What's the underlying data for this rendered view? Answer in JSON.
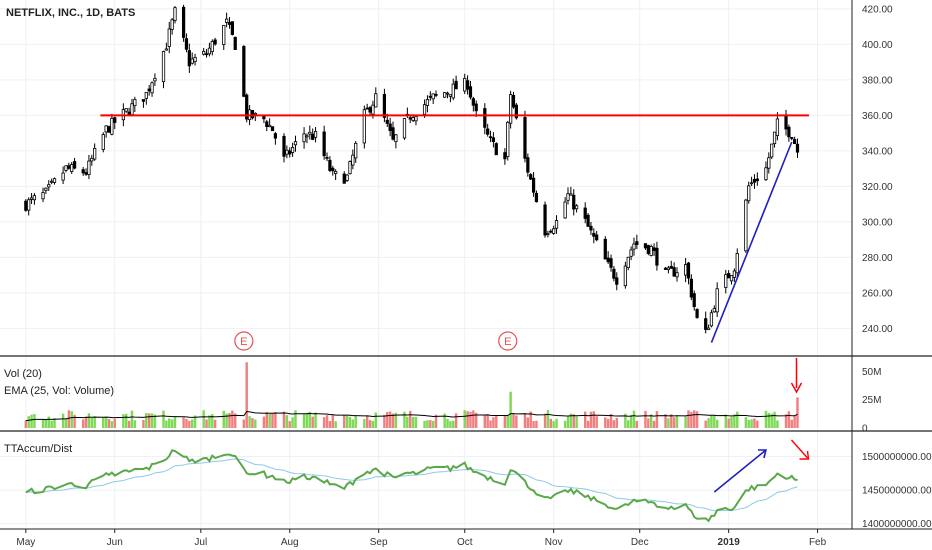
{
  "title": "NETFLIX, INC., 1D, BATS",
  "volume_panel": {
    "label1": "Vol (20)",
    "label2": "EMA (25, Vol: Volume)"
  },
  "accum_panel": {
    "label": "TTAccum/Dist"
  },
  "colors": {
    "up": "#7ed957",
    "down": "#f08080",
    "price_up": "#ffffff",
    "price_down": "#000000",
    "resistance": "#ff0000",
    "trend": "#1f1fbf",
    "accum": "#5aa84a",
    "accum_ema": "#8ec9e8",
    "vol_ema": "#000000",
    "marker": "#e85050"
  },
  "chart_data": [
    {
      "type": "candlestick",
      "title": "NETFLIX, INC., 1D, BATS",
      "x_ticks": [
        "May",
        "Jun",
        "Jul",
        "Aug",
        "Sep",
        "Oct",
        "Nov",
        "Dec",
        "2019",
        "Feb"
      ],
      "y_ticks": [
        "240.00",
        "260.00",
        "280.00",
        "300.00",
        "320.00",
        "340.00",
        "360.00",
        "380.00",
        "400.00",
        "420.00"
      ],
      "ylim": [
        225,
        425
      ],
      "close_path": [
        [
          "2018-05-01",
          310
        ],
        [
          "2018-05-08",
          316
        ],
        [
          "2018-05-15",
          330
        ],
        [
          "2018-05-22",
          328
        ],
        [
          "2018-05-29",
          352
        ],
        [
          "2018-06-05",
          362
        ],
        [
          "2018-06-12",
          372
        ],
        [
          "2018-06-19",
          400
        ],
        [
          "2018-06-22",
          418
        ],
        [
          "2018-06-27",
          390
        ],
        [
          "2018-07-03",
          395
        ],
        [
          "2018-07-10",
          412
        ],
        [
          "2018-07-13",
          400
        ],
        [
          "2018-07-17",
          360
        ],
        [
          "2018-07-23",
          358
        ],
        [
          "2018-07-26",
          352
        ],
        [
          "2018-07-30",
          335
        ],
        [
          "2018-08-06",
          350
        ],
        [
          "2018-08-10",
          348
        ],
        [
          "2018-08-16",
          326
        ],
        [
          "2018-08-21",
          325
        ],
        [
          "2018-08-27",
          360
        ],
        [
          "2018-08-31",
          370
        ],
        [
          "2018-09-06",
          345
        ],
        [
          "2018-09-12",
          360
        ],
        [
          "2018-09-20",
          370
        ],
        [
          "2018-09-27",
          375
        ],
        [
          "2018-10-02",
          378
        ],
        [
          "2018-10-05",
          360
        ],
        [
          "2018-10-10",
          345
        ],
        [
          "2018-10-15",
          335
        ],
        [
          "2018-10-17",
          372
        ],
        [
          "2018-10-22",
          335
        ],
        [
          "2018-10-29",
          295
        ],
        [
          "2018-11-02",
          300
        ],
        [
          "2018-11-06",
          315
        ],
        [
          "2018-11-12",
          300
        ],
        [
          "2018-11-20",
          275
        ],
        [
          "2018-11-23",
          268
        ],
        [
          "2018-11-29",
          288
        ],
        [
          "2018-12-05",
          285
        ],
        [
          "2018-12-10",
          270
        ],
        [
          "2018-12-17",
          275
        ],
        [
          "2018-12-21",
          245
        ],
        [
          "2018-12-24",
          237
        ],
        [
          "2018-12-28",
          260
        ],
        [
          "2019-01-03",
          275
        ],
        [
          "2019-01-08",
          320
        ],
        [
          "2019-01-14",
          330
        ],
        [
          "2019-01-18",
          355
        ],
        [
          "2019-01-23",
          350
        ],
        [
          "2019-01-25",
          340
        ]
      ],
      "candles_shown": 182,
      "resistance_level": 360,
      "earnings_markers": [
        {
          "date": "2018-07-16",
          "label": "E"
        },
        {
          "date": "2018-10-16",
          "label": "E"
        }
      ]
    },
    {
      "type": "bar",
      "title": "Vol (20)",
      "series_names": [
        "Vol (20)",
        "EMA (25, Vol: Volume)"
      ],
      "y_ticks": [
        "0",
        "25M",
        "50M"
      ],
      "ylim": [
        0,
        60
      ],
      "highlights": [
        {
          "date": "2018-07-17",
          "value": 58
        },
        {
          "date": "2018-10-17",
          "value": 32
        },
        {
          "date": "2019-01-25",
          "value": 27
        }
      ]
    },
    {
      "type": "line",
      "title": "TTAccum/Dist",
      "y_ticks": [
        "1400000000.00",
        "1450000000.00",
        "1500000000.00"
      ],
      "ylim": [
        1395000000,
        1535000000
      ]
    }
  ]
}
